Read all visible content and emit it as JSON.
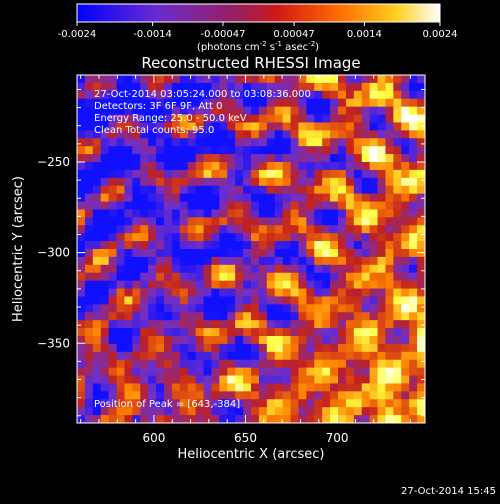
{
  "colorbar": {
    "ticks": [
      "-0.0024",
      "-0.0014",
      "-0.00047",
      "0.00047",
      "0.0014",
      "0.0024"
    ],
    "units_main": "(photons cm",
    "units_exp1": "-2",
    "units_mid1": " s",
    "units_exp2": "-1",
    "units_mid2": " asec",
    "units_exp3": "-2",
    "units_end": ")",
    "range": [
      -0.0024,
      0.0024
    ]
  },
  "chart_data": {
    "type": "heatmap",
    "title": "Reconstructed RHESSI Image",
    "xlabel": "Heliocentric X (arcsec)",
    "ylabel": "Heliocentric Y (arcsec)",
    "x_ticks": [
      600,
      650,
      700
    ],
    "y_ticks": [
      -250,
      -300,
      -350
    ],
    "xlim": [
      558,
      748
    ],
    "ylim": [
      -394,
      -202
    ],
    "colormap": [
      "#1010ff",
      "#7030c8",
      "#c02020",
      "#ff8000",
      "#ffff40",
      "#ffffff"
    ],
    "peak": [
      643,
      -384
    ],
    "annotations": [
      "27-Oct-2014 03:05:24.000 to 03:08:36.000",
      "Detectors: 3F 6F 9F, Att 0",
      "Energy Range: 25.0 - 50.0 keV",
      "Clean    Total counts: 95.0",
      "Position of Peak = [643,-384]"
    ]
  },
  "footer": {
    "timestamp": "27-Oct-2014 15:45"
  }
}
